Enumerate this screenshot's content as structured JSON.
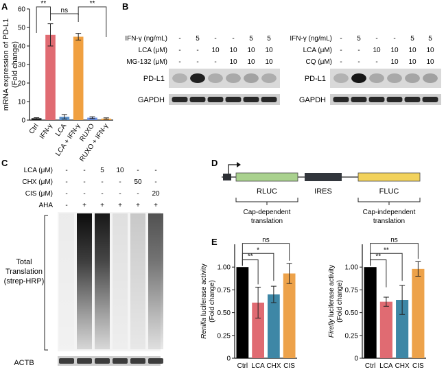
{
  "panels": {
    "a": "A",
    "b": "B",
    "c": "C",
    "d": "D",
    "e": "E"
  },
  "chart_data": [
    {
      "type": "bar",
      "panel": "A",
      "ylabel": "mRNA expression of PD-L1\n(Fold change)",
      "ylim": [
        0,
        60
      ],
      "yticks": [
        0,
        10,
        20,
        30,
        40,
        50,
        60
      ],
      "categories": [
        "Ctrl",
        "IFN-γ",
        "LCA",
        "LCA + IFN-γ",
        "RUXO",
        "RUXO + IFN-γ"
      ],
      "values": [
        1,
        46,
        1.8,
        45,
        1.3,
        0.8
      ],
      "errors": [
        0.3,
        6,
        1.2,
        1.8,
        0.5,
        0.4
      ],
      "colors": [
        "#1a1a1a",
        "#e06b72",
        "#5a8fc8",
        "#f0a040",
        "#6a8fe0",
        "#f0a040"
      ],
      "annotations": [
        {
          "from": 0,
          "to": 1,
          "text": "**"
        },
        {
          "from": 1,
          "to": 3,
          "text": "ns"
        },
        {
          "from": 3,
          "to": 5,
          "text": "**"
        }
      ]
    },
    {
      "type": "bar",
      "panel": "E-left",
      "ylabel_italic": "Renilla",
      "ylabel_rest": " luciferase activity",
      "ylabel2": "(Fold change)",
      "ylim": [
        0,
        1.25
      ],
      "yticks": [
        0,
        0.25,
        0.5,
        0.75,
        1.0
      ],
      "ytick_labels": [
        "0",
        "0.25",
        "0.50",
        "0.75",
        "1.00"
      ],
      "categories": [
        "Ctrl",
        "LCA",
        "CHX",
        "CIS"
      ],
      "values": [
        1.0,
        0.61,
        0.7,
        0.93
      ],
      "errors": [
        0,
        0.17,
        0.09,
        0.11
      ],
      "colors": [
        "#000000",
        "#e06b72",
        "#3e87a6",
        "#eda24a"
      ],
      "annotations": [
        {
          "from": 0,
          "to": 3,
          "text": "ns"
        },
        {
          "from": 0,
          "to": 2,
          "text": "*"
        },
        {
          "from": 0,
          "to": 1,
          "text": "**"
        }
      ]
    },
    {
      "type": "bar",
      "panel": "E-right",
      "ylabel_italic": "Firefly",
      "ylabel_rest": " luciferase activity",
      "ylabel2": "(Fold change)",
      "ylim": [
        0,
        1.25
      ],
      "yticks": [
        0,
        0.25,
        0.5,
        0.75,
        1.0
      ],
      "ytick_labels": [
        "0",
        "0.25",
        "0.50",
        "0.75",
        "1.00"
      ],
      "categories": [
        "Ctrl",
        "LCA",
        "CHX",
        "CIS"
      ],
      "values": [
        1.0,
        0.62,
        0.64,
        0.98
      ],
      "errors": [
        0,
        0.05,
        0.16,
        0.08
      ],
      "colors": [
        "#000000",
        "#e06b72",
        "#3e87a6",
        "#eda24a"
      ],
      "annotations": [
        {
          "from": 0,
          "to": 3,
          "text": "ns"
        },
        {
          "from": 0,
          "to": 2,
          "text": "**"
        },
        {
          "from": 0,
          "to": 1,
          "text": "**"
        }
      ]
    }
  ],
  "blotB1": {
    "rows": [
      {
        "label": "IFN-γ (ng/mL)",
        "vals": [
          "-",
          "5",
          "-",
          "-",
          "5",
          "5"
        ]
      },
      {
        "label": "LCA (μM)",
        "vals": [
          "-",
          "-",
          "10",
          "10",
          "10",
          "10"
        ]
      },
      {
        "label": "MG-132 (μM)",
        "vals": [
          "-",
          "-",
          "-",
          "10",
          "10",
          "10"
        ]
      }
    ],
    "bands": [
      "PD-L1",
      "GAPDH"
    ]
  },
  "blotB2": {
    "rows": [
      {
        "label": "IFN-γ (ng/mL)",
        "vals": [
          "-",
          "5",
          "-",
          "-",
          "5",
          "5"
        ]
      },
      {
        "label": "LCA (μM)",
        "vals": [
          "-",
          "-",
          "10",
          "10",
          "10",
          "10"
        ]
      },
      {
        "label": "CQ (μM)",
        "vals": [
          "-",
          "-",
          "-",
          "10",
          "10",
          "10"
        ]
      }
    ],
    "bands": [
      "PD-L1",
      "GAPDH"
    ]
  },
  "blotC": {
    "rows": [
      {
        "label": "LCA (μM)",
        "vals": [
          "-",
          "-",
          "5",
          "10",
          "-",
          "-"
        ]
      },
      {
        "label": "CHX (μM)",
        "vals": [
          "-",
          "-",
          "-",
          "-",
          "50",
          "-"
        ]
      },
      {
        "label": "CIS (μM)",
        "vals": [
          "-",
          "-",
          "-",
          "-",
          "-",
          "20"
        ]
      },
      {
        "label": "AHA",
        "vals": [
          "-",
          "+",
          "+",
          "+",
          "+",
          "+"
        ]
      }
    ],
    "side_label": [
      "Total",
      "Translation",
      "(strep-HRP)"
    ],
    "bottom_band": "ACTB"
  },
  "diagramD": {
    "rluc": "RLUC",
    "ires": "IRES",
    "fluc": "FLUC",
    "cap_dep": [
      "Cap-dependent",
      "translation"
    ],
    "cap_indep": [
      "Cap-independent",
      "translation"
    ]
  }
}
